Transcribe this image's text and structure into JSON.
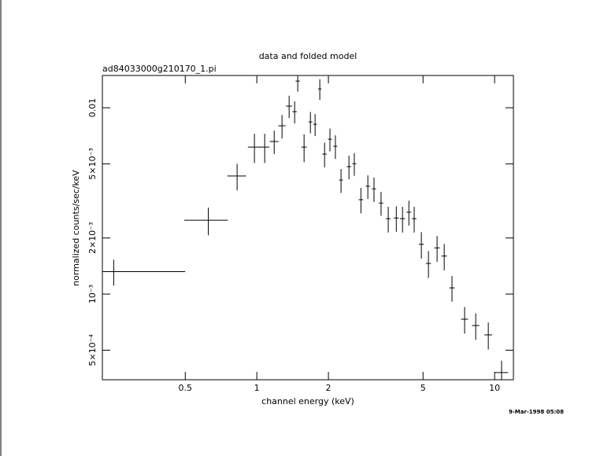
{
  "chart_data": {
    "type": "scatter",
    "title": "data and folded model",
    "subtitle": "ad84033000g210170_1.pi",
    "x_label": "channel energy (keV)",
    "y_label": "normalized counts/sec/keV",
    "timestamp": "9-Mar-1998 05:08",
    "color": "#000000",
    "xlog": true,
    "ylog": true,
    "xlim": [
      0.224,
      12.0
    ],
    "ylim": [
      0.000347,
      0.0149
    ],
    "xticks": [
      0.5,
      1,
      2,
      5,
      10
    ],
    "yticks": [
      {
        "value": 0.01,
        "label": "0.01"
      },
      {
        "value": 0.005,
        "label": "5×10⁻³"
      },
      {
        "value": 0.002,
        "label": "2×10⁻³"
      },
      {
        "value": 0.001,
        "label": "10⁻³"
      },
      {
        "value": 0.0005,
        "label": "5×10⁻⁴"
      }
    ],
    "x": [
      0.25,
      0.625,
      0.826,
      0.977,
      1.079,
      1.183,
      1.276,
      1.367,
      1.442,
      1.486,
      1.58,
      1.68,
      1.758,
      1.84,
      1.927,
      2.03,
      2.14,
      2.26,
      2.44,
      2.57,
      2.74,
      2.93,
      3.11,
      3.33,
      3.57,
      3.86,
      4.1,
      4.36,
      4.59,
      4.92,
      5.27,
      5.73,
      6.14,
      6.62,
      7.48,
      8.33,
      9.41,
      10.7
    ],
    "xerr": [
      0.25,
      0.13,
      0.075,
      0.06,
      0.05,
      0.05,
      0.045,
      0.04,
      0.03,
      0.03,
      0.04,
      0.03,
      0.03,
      0.03,
      0.04,
      0.04,
      0.04,
      0.04,
      0.05,
      0.05,
      0.06,
      0.06,
      0.06,
      0.07,
      0.08,
      0.09,
      0.1,
      0.1,
      0.1,
      0.12,
      0.13,
      0.15,
      0.16,
      0.17,
      0.25,
      0.3,
      0.35,
      0.7
    ],
    "values": [
      0.00132,
      0.00249,
      0.0043,
      0.00615,
      0.00615,
      0.00659,
      0.008,
      0.0102,
      0.00953,
      0.0139,
      0.00615,
      0.00839,
      0.00815,
      0.01262,
      0.00564,
      0.00678,
      0.00621,
      0.00409,
      0.00483,
      0.00501,
      0.00321,
      0.00379,
      0.00367,
      0.00308,
      0.00254,
      0.00256,
      0.00254,
      0.00275,
      0.00254,
      0.00185,
      0.00146,
      0.00177,
      0.0016,
      0.00108,
      0.000733,
      0.000678,
      0.000604,
      0.000379
    ],
    "yerr": [
      0.00021,
      0.00042,
      0.0007,
      0.0011,
      0.0011,
      0.00095,
      0.00115,
      0.0014,
      0.0013,
      0.0017,
      0.00105,
      0.0011,
      0.0011,
      0.0016,
      0.00085,
      0.00095,
      0.0009,
      0.0006,
      0.0007,
      0.0007,
      0.0005,
      0.00055,
      0.00055,
      0.00045,
      0.0004,
      0.0004,
      0.0004,
      0.00042,
      0.0004,
      0.0003,
      0.00024,
      0.00028,
      0.00026,
      0.00017,
      0.00012,
      0.00011,
      0.0001,
      6e-05
    ]
  }
}
